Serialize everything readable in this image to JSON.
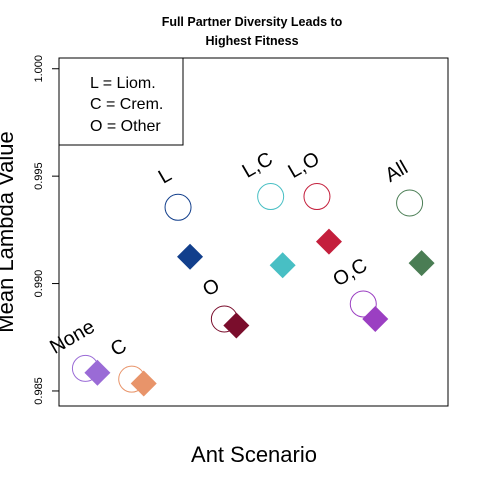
{
  "chart_data": {
    "type": "scatter",
    "title_line1": "Full Partner Diversity Leads to",
    "title_line2": "Highest Fitness",
    "xlabel": "Ant Scenario",
    "ylabel": "Mean Lambda Value",
    "ylim": [
      0.9843,
      1.0005
    ],
    "yticks": [
      0.985,
      0.99,
      0.995,
      1.0
    ],
    "ytick_labels": [
      "0.985",
      "0.990",
      "0.995",
      "1.000"
    ],
    "xlim": [
      0.3,
      8.7
    ],
    "legend": {
      "placement": "top-left",
      "entries": [
        "L = Liom.",
        "C = Crem.",
        "O = Other"
      ]
    },
    "points": [
      {
        "label": "None",
        "x": 1,
        "circle": 0.98605,
        "diamond": 0.98585,
        "color": "#9a6bd6"
      },
      {
        "label": "C",
        "x": 2,
        "circle": 0.98555,
        "diamond": 0.98535,
        "color": "#e8946a"
      },
      {
        "label": "L",
        "x": 3,
        "circle": 0.99355,
        "diamond": 0.99125,
        "color": "#123f8c"
      },
      {
        "label": "O",
        "x": 4,
        "circle": 0.98835,
        "diamond": 0.98805,
        "color": "#7a0d2c"
      },
      {
        "label": "L,C",
        "x": 5,
        "circle": 0.99405,
        "diamond": 0.99085,
        "color": "#48bfc4"
      },
      {
        "label": "L,O",
        "x": 6,
        "circle": 0.99405,
        "diamond": 0.99195,
        "color": "#c41f3c"
      },
      {
        "label": "O,C",
        "x": 7,
        "circle": 0.98905,
        "diamond": 0.98835,
        "color": "#9b3fc2"
      },
      {
        "label": "All",
        "x": 8,
        "circle": 0.99375,
        "diamond": 0.99095,
        "color": "#4a7d54"
      }
    ]
  }
}
